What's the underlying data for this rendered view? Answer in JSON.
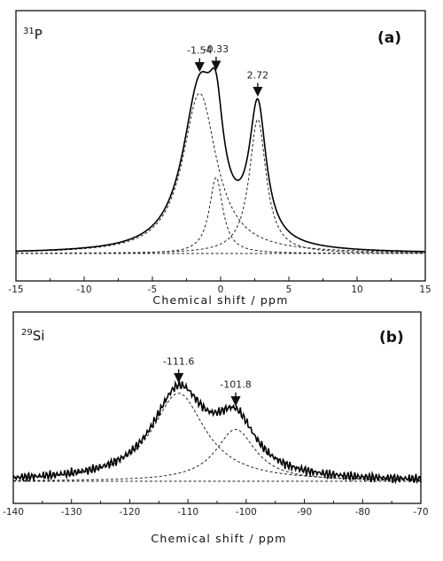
{
  "chart_data": [
    {
      "type": "line",
      "panel": "(a)",
      "nucleus_sup": "31",
      "nucleus": "P",
      "xlabel": "Chemical shift / ppm",
      "xlim": [
        -15,
        15
      ],
      "x_ticks": [
        -15,
        -10,
        -5,
        0,
        5,
        10,
        15
      ],
      "y_ticks": "none",
      "series": [
        {
          "style": "solid",
          "role": "experimental spectrum"
        },
        {
          "style": "dashed",
          "role": "fitted component",
          "center": -1.54,
          "height": 0.8,
          "width": 1.5
        },
        {
          "style": "dashed",
          "role": "fitted component",
          "center": -0.33,
          "height": 0.38,
          "width": 0.6
        },
        {
          "style": "dashed",
          "role": "fitted component",
          "center": 2.72,
          "height": 0.67,
          "width": 0.75
        }
      ],
      "annotations": [
        {
          "label": "-1.54",
          "x": -1.54
        },
        {
          "label": "-0.33",
          "x": -0.33
        },
        {
          "label": "2.72",
          "x": 2.72
        }
      ],
      "grid": false,
      "legend": "none"
    },
    {
      "type": "line",
      "panel": "(b)",
      "nucleus_sup": "29",
      "nucleus": "Si",
      "xlabel": "Chemical shift / ppm",
      "xlim": [
        -140,
        -70
      ],
      "x_ticks": [
        -140,
        -130,
        -120,
        -110,
        -100,
        -90,
        -80,
        -70
      ],
      "y_ticks": "none",
      "series": [
        {
          "style": "solid",
          "role": "experimental spectrum"
        },
        {
          "style": "dashed",
          "role": "fitted component",
          "center": -111.6,
          "height": 0.73,
          "width": 5.5
        },
        {
          "style": "dashed",
          "role": "fitted component",
          "center": -101.8,
          "height": 0.43,
          "width": 4.2
        }
      ],
      "annotations": [
        {
          "label": "-111.6",
          "x": -111.6
        },
        {
          "label": "-101.8",
          "x": -101.8
        }
      ],
      "grid": false,
      "legend": "none"
    }
  ]
}
